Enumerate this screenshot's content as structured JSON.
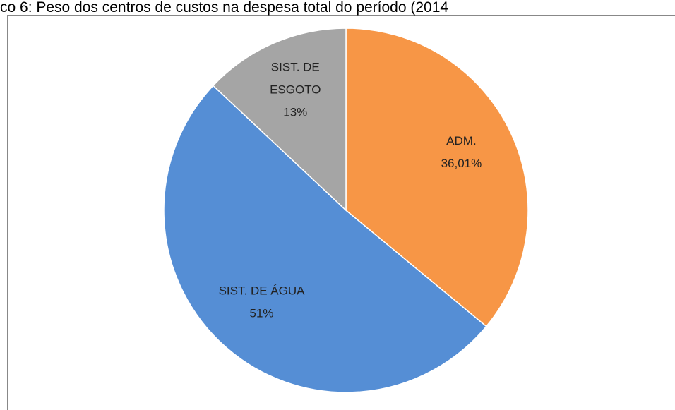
{
  "chart_data": {
    "type": "pie",
    "title": "co 6: Peso dos centros de custos na despesa total do período (2014",
    "categories": [
      "ADM.",
      "SIST. DE ÁGUA",
      "SIST. DE ESGOTO"
    ],
    "values": [
      36.01,
      51,
      13
    ],
    "value_labels": [
      "36,01%",
      "51%",
      "13%"
    ],
    "colors": [
      "#f79646",
      "#558ed5",
      "#a5a5a5"
    ]
  }
}
